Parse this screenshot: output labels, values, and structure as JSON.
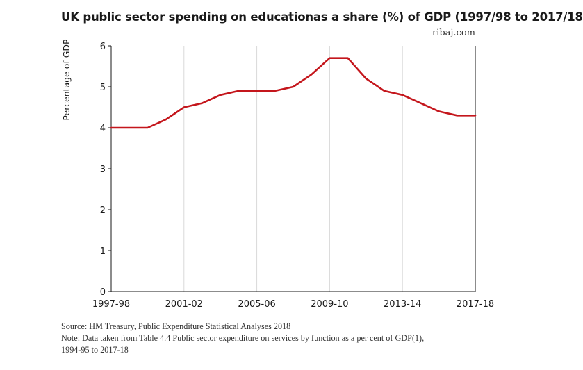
{
  "header": {
    "title": "UK public sector spending on educationas a share (%) of GDP (1997/98 to 2017/18",
    "credit": "ribaj.com"
  },
  "footer": {
    "source": "Source: HM Treasury, Public Expenditure Statistical Analyses 2018",
    "note_line1": "Note: Data taken from Table 4.4 Public sector expenditure on services by function as a per cent of GDP(1),",
    "note_line2": "1994-95 to 2017-18"
  },
  "colors": {
    "line": "#c4161c",
    "axis": "#1a1a1a",
    "grid": "#d9d9d9"
  },
  "chart_data": {
    "type": "line",
    "title": "UK public sector spending on educationas a share (%) of GDP (1997/98 to 2017/18",
    "xlabel": "",
    "ylabel": "Percentage of GDP",
    "ylim": [
      0,
      6
    ],
    "yticks": [
      "0",
      "1",
      "2",
      "3",
      "4",
      "5",
      "6"
    ],
    "xtick_labels": [
      "1997-98",
      "2001-02",
      "2005-06",
      "2009-10",
      "2013-14",
      "2017-18"
    ],
    "x": [
      "1997-98",
      "1998-99",
      "1999-00",
      "2000-01",
      "2001-02",
      "2002-03",
      "2003-04",
      "2004-05",
      "2005-06",
      "2006-07",
      "2007-08",
      "2008-09",
      "2009-10",
      "2010-11",
      "2011-12",
      "2012-13",
      "2013-14",
      "2014-15",
      "2015-16",
      "2016-17",
      "2017-18"
    ],
    "series": [
      {
        "values": [
          4.0,
          4.0,
          4.0,
          4.2,
          4.5,
          4.6,
          4.8,
          4.9,
          4.9,
          4.9,
          5.0,
          5.3,
          5.7,
          5.7,
          5.2,
          4.9,
          4.8,
          4.6,
          4.4,
          4.3,
          4.3
        ]
      }
    ],
    "grid": "vertical",
    "legend": "none"
  }
}
